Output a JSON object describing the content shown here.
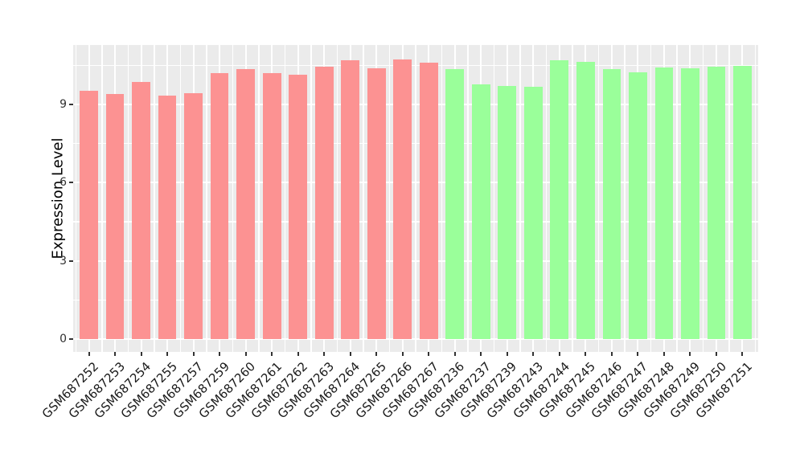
{
  "chart_data": {
    "type": "bar",
    "title": "",
    "xlabel": "",
    "ylabel": "Expression Level",
    "categories": [
      "GSM687252",
      "GSM687253",
      "GSM687254",
      "GSM687255",
      "GSM687257",
      "GSM687259",
      "GSM687260",
      "GSM687261",
      "GSM687262",
      "GSM687263",
      "GSM687264",
      "GSM687265",
      "GSM687266",
      "GSM687267",
      "GSM687236",
      "GSM687237",
      "GSM687239",
      "GSM687243",
      "GSM687244",
      "GSM687245",
      "GSM687246",
      "GSM687247",
      "GSM687248",
      "GSM687249",
      "GSM687250",
      "GSM687251"
    ],
    "values": [
      9.54,
      9.39,
      9.87,
      9.35,
      9.43,
      10.21,
      10.36,
      10.2,
      10.15,
      10.44,
      10.69,
      10.38,
      10.73,
      10.6,
      10.36,
      9.78,
      9.72,
      9.69,
      10.71,
      10.64,
      10.37,
      10.25,
      10.42,
      10.39,
      10.44,
      10.48
    ],
    "bar_groups": [
      "a",
      "a",
      "a",
      "a",
      "a",
      "a",
      "a",
      "a",
      "a",
      "a",
      "a",
      "a",
      "a",
      "a",
      "b",
      "b",
      "b",
      "b",
      "b",
      "b",
      "b",
      "b",
      "b",
      "b",
      "b",
      "b"
    ],
    "group_colors": {
      "a": "#FC9292",
      "b": "#9AFF9A"
    },
    "y_ticks": [
      0,
      3,
      6,
      9
    ],
    "y_minor_ticks": [
      1.5,
      4.5,
      7.5,
      10.5
    ],
    "ylim": [
      0,
      11.28
    ],
    "legend": "none",
    "grid": "on",
    "panel_bg": "#EBEBEB",
    "grid_color": "#FFFFFF"
  }
}
